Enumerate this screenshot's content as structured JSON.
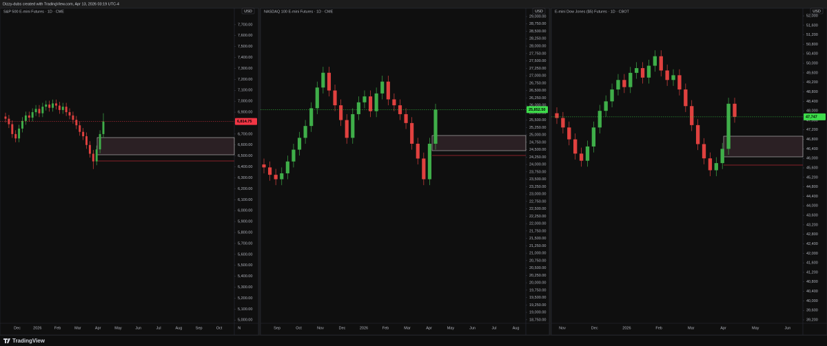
{
  "header": "Dizzy-dubs created with TradingView.com, Apr 13, 2026 03:19 UTC-4",
  "footer_brand": "TradingView",
  "chart_data": [
    {
      "type": "candlestick",
      "title": "S&P 500 E-mini Futures · 1D · CME",
      "currency": "USD",
      "up_color": "#3fae49",
      "down_color": "#e0413f",
      "last_color": "#f23645",
      "x_labels": [
        "Dec",
        "2026",
        "Feb",
        "Mar",
        "Apr",
        "May",
        "Jun",
        "Jul",
        "Aug",
        "Sep",
        "Oct",
        "N"
      ],
      "open": [
        6860,
        6840,
        6790,
        6700,
        6660,
        6750,
        6820,
        6870,
        6850,
        6900,
        6930,
        6890,
        6950,
        6970,
        6940,
        6980,
        6960,
        6920,
        6950,
        6900,
        6870,
        6830,
        6780,
        6720,
        6680,
        6600,
        6520,
        6450,
        6560,
        6700
      ],
      "high": [
        6895,
        6875,
        6825,
        6735,
        6785,
        6855,
        6905,
        6905,
        6935,
        6965,
        6965,
        6985,
        7005,
        7005,
        7015,
        7015,
        6995,
        6985,
        6985,
        6935,
        6905,
        6865,
        6815,
        6755,
        6715,
        6635,
        6555,
        6595,
        6735,
        6890
      ],
      "low": [
        6805,
        6755,
        6665,
        6625,
        6625,
        6715,
        6785,
        6815,
        6815,
        6865,
        6855,
        6855,
        6915,
        6905,
        6905,
        6925,
        6885,
        6885,
        6865,
        6835,
        6795,
        6745,
        6685,
        6645,
        6565,
        6485,
        6380,
        6415,
        6525,
        6665
      ],
      "close": [
        6840,
        6790,
        6700,
        6660,
        6750,
        6820,
        6870,
        6850,
        6900,
        6930,
        6890,
        6950,
        6970,
        6940,
        6980,
        6960,
        6920,
        6950,
        6900,
        6870,
        6830,
        6780,
        6720,
        6680,
        6600,
        6520,
        6450,
        6560,
        6700,
        6815
      ],
      "last_price": {
        "value": 6814.75,
        "label": "6,814.75"
      },
      "ylim": [
        4970,
        7850
      ],
      "yticks": [
        {
          "value": 5000,
          "label": "5,000.00"
        },
        {
          "value": 5100,
          "label": "5,100.00"
        },
        {
          "value": 5200,
          "label": "5,200.00"
        },
        {
          "value": 5300,
          "label": "5,300.00"
        },
        {
          "value": 5400,
          "label": "5,400.00"
        },
        {
          "value": 5500,
          "label": "5,500.00"
        },
        {
          "value": 5600,
          "label": "5,600.00"
        },
        {
          "value": 5700,
          "label": "5,700.00"
        },
        {
          "value": 5800,
          "label": "5,800.00"
        },
        {
          "value": 5900,
          "label": "5,900.00"
        },
        {
          "value": 6000,
          "label": "6,000.00"
        },
        {
          "value": 6100,
          "label": "6,100.00"
        },
        {
          "value": 6200,
          "label": "6,200.00"
        },
        {
          "value": 6300,
          "label": "6,300.00"
        },
        {
          "value": 6400,
          "label": "6,400.00"
        },
        {
          "value": 6500,
          "label": "6,500.00"
        },
        {
          "value": 6600,
          "label": "6,600.00"
        },
        {
          "value": 6700,
          "label": "6,700.00"
        },
        {
          "value": 6800,
          "label": "6,800.00"
        },
        {
          "value": 6900,
          "label": "6,900.00"
        },
        {
          "value": 7000,
          "label": "7,000.00"
        },
        {
          "value": 7100,
          "label": "7,100.00"
        },
        {
          "value": 7200,
          "label": "7,200.00"
        },
        {
          "value": 7300,
          "label": "7,300.00"
        },
        {
          "value": 7400,
          "label": "7,400.00"
        },
        {
          "value": 7500,
          "label": "7,500.00"
        },
        {
          "value": 7600,
          "label": "7,600.00"
        },
        {
          "value": 7700,
          "label": "7,700.00"
        }
      ]
    },
    {
      "type": "candlestick",
      "title": "NASDAQ 100 E-mini Futures · 1D · CME",
      "currency": "USD",
      "up_color": "#3fae49",
      "down_color": "#e0413f",
      "last_color": "#3ddc4a",
      "x_labels": [
        "Sep",
        "Oct",
        "Nov",
        "Dec",
        "2026",
        "Feb",
        "Mar",
        "Apr",
        "May",
        "Jun",
        "Jul",
        "Aug"
      ],
      "open": [
        24000,
        23900,
        23650,
        23500,
        23700,
        24100,
        24500,
        24900,
        25300,
        25900,
        26600,
        27100,
        26500,
        26000,
        25500,
        24900,
        25700,
        26100,
        26300,
        25800,
        26400,
        26800,
        26200,
        26000,
        25700,
        25400,
        24700,
        24200,
        23500,
        24700
      ],
      "high": [
        24200,
        24100,
        23850,
        23900,
        24300,
        24700,
        25100,
        25500,
        26100,
        26800,
        27300,
        27300,
        26700,
        26200,
        25700,
        25900,
        26300,
        26500,
        26500,
        26600,
        27000,
        27000,
        26400,
        26200,
        25900,
        25600,
        24900,
        24400,
        24900,
        26050
      ],
      "low": [
        23700,
        23450,
        23300,
        23300,
        23500,
        23900,
        24300,
        24700,
        25100,
        25700,
        26400,
        26300,
        25800,
        25300,
        24700,
        24700,
        25500,
        25900,
        25600,
        25600,
        26200,
        26000,
        25800,
        25500,
        25200,
        24500,
        24000,
        23300,
        23300,
        24500
      ],
      "close": [
        23900,
        23650,
        23500,
        23700,
        24100,
        24500,
        24900,
        25300,
        25900,
        26600,
        27100,
        26500,
        26000,
        25500,
        24900,
        25700,
        26100,
        26300,
        25800,
        26400,
        26800,
        26200,
        26000,
        25700,
        25400,
        24700,
        24200,
        23500,
        24700,
        25850
      ],
      "last_price": {
        "value": 25852.5,
        "label": "25,852.50"
      },
      "ylim": [
        18630,
        29280
      ],
      "yticks": [
        {
          "value": 18750,
          "label": "18,750.00"
        },
        {
          "value": 19000,
          "label": "19,000.00"
        },
        {
          "value": 19250,
          "label": "19,250.00"
        },
        {
          "value": 19500,
          "label": "19,500.00"
        },
        {
          "value": 19750,
          "label": "19,750.00"
        },
        {
          "value": 20000,
          "label": "20,000.00"
        },
        {
          "value": 20250,
          "label": "20,250.00"
        },
        {
          "value": 20500,
          "label": "20,500.00"
        },
        {
          "value": 20750,
          "label": "20,750.00"
        },
        {
          "value": 21000,
          "label": "21,000.00"
        },
        {
          "value": 21250,
          "label": "21,250.00"
        },
        {
          "value": 21500,
          "label": "21,500.00"
        },
        {
          "value": 21750,
          "label": "21,750.00"
        },
        {
          "value": 22000,
          "label": "22,000.00"
        },
        {
          "value": 22250,
          "label": "22,250.00"
        },
        {
          "value": 22500,
          "label": "22,500.00"
        },
        {
          "value": 22750,
          "label": "22,750.00"
        },
        {
          "value": 23000,
          "label": "23,000.00"
        },
        {
          "value": 23250,
          "label": "23,250.00"
        },
        {
          "value": 23500,
          "label": "23,500.00"
        },
        {
          "value": 23750,
          "label": "23,750.00"
        },
        {
          "value": 24000,
          "label": "24,000.00"
        },
        {
          "value": 24250,
          "label": "24,250.00"
        },
        {
          "value": 24500,
          "label": "24,500.00"
        },
        {
          "value": 24750,
          "label": "24,750.00"
        },
        {
          "value": 25000,
          "label": "25,000.00"
        },
        {
          "value": 25250,
          "label": "25,250.00"
        },
        {
          "value": 25500,
          "label": "25,500.00"
        },
        {
          "value": 25750,
          "label": "25,750.00"
        },
        {
          "value": 26000,
          "label": "26,000.00"
        },
        {
          "value": 26250,
          "label": "26,250.00"
        },
        {
          "value": 26500,
          "label": "26,500.00"
        },
        {
          "value": 26750,
          "label": "26,750.00"
        },
        {
          "value": 27000,
          "label": "27,000.00"
        },
        {
          "value": 27250,
          "label": "27,250.00"
        },
        {
          "value": 27500,
          "label": "27,500.00"
        },
        {
          "value": 27750,
          "label": "27,750.00"
        },
        {
          "value": 28000,
          "label": "28,000.00"
        },
        {
          "value": 28250,
          "label": "28,250.00"
        },
        {
          "value": 28500,
          "label": "28,500.00"
        },
        {
          "value": 28750,
          "label": "28,750.00"
        },
        {
          "value": 29000,
          "label": "29,000.00"
        }
      ]
    },
    {
      "type": "candlestick",
      "title": "E-mini Dow Jones ($5) Futures · 1D · CBOT",
      "currency": "USD",
      "up_color": "#3fae49",
      "down_color": "#e0413f",
      "last_color": "#3ddc4a",
      "x_labels": [
        "Nov",
        "Dec",
        "2026",
        "Feb",
        "Mar",
        "Apr",
        "May",
        "Jun"
      ],
      "open": [
        47900,
        47700,
        47300,
        46800,
        46200,
        45900,
        46500,
        47300,
        48000,
        48400,
        48900,
        49300,
        49000,
        49600,
        49800,
        49400,
        49900,
        50300,
        49700,
        49300,
        49500,
        48900,
        48200,
        47400,
        46600,
        46000,
        45500,
        45800,
        46400,
        48300
      ],
      "high": [
        48150,
        47950,
        47550,
        47050,
        46450,
        46750,
        47550,
        48250,
        48650,
        49150,
        49550,
        49550,
        49850,
        50050,
        50050,
        50150,
        50550,
        50550,
        49950,
        49750,
        49750,
        49150,
        48450,
        47650,
        46850,
        46250,
        46050,
        46650,
        48550,
        48550
      ],
      "low": [
        47450,
        47050,
        46550,
        45950,
        45650,
        45650,
        46250,
        47050,
        47750,
        48150,
        48650,
        48750,
        48750,
        49350,
        49150,
        49150,
        49650,
        49450,
        49050,
        49050,
        48650,
        47950,
        47150,
        46350,
        45750,
        45250,
        45250,
        45550,
        46150,
        47500
      ],
      "close": [
        47700,
        47300,
        46800,
        46200,
        45900,
        46500,
        47300,
        48000,
        48400,
        48900,
        49300,
        49000,
        49600,
        49800,
        49400,
        49900,
        50300,
        49700,
        49300,
        49500,
        48900,
        48200,
        47400,
        46600,
        46000,
        45500,
        45800,
        46400,
        48300,
        47750
      ],
      "last_price": {
        "value": 47747,
        "label": "47,747"
      },
      "ylim": [
        39055,
        52320
      ],
      "yticks": [
        {
          "value": 39200,
          "label": "39,200"
        },
        {
          "value": 39600,
          "label": "39,600"
        },
        {
          "value": 40000,
          "label": "40,000"
        },
        {
          "value": 40400,
          "label": "40,400"
        },
        {
          "value": 40800,
          "label": "40,800"
        },
        {
          "value": 41200,
          "label": "41,200"
        },
        {
          "value": 41600,
          "label": "41,600"
        },
        {
          "value": 42000,
          "label": "42,000"
        },
        {
          "value": 42400,
          "label": "42,400"
        },
        {
          "value": 42800,
          "label": "42,800"
        },
        {
          "value": 43200,
          "label": "43,200"
        },
        {
          "value": 43600,
          "label": "43,600"
        },
        {
          "value": 44000,
          "label": "44,000"
        },
        {
          "value": 44400,
          "label": "44,400"
        },
        {
          "value": 44800,
          "label": "44,800"
        },
        {
          "value": 45200,
          "label": "45,200"
        },
        {
          "value": 45600,
          "label": "45,600"
        },
        {
          "value": 46000,
          "label": "46,000"
        },
        {
          "value": 46400,
          "label": "46,400"
        },
        {
          "value": 46800,
          "label": "46,800"
        },
        {
          "value": 47200,
          "label": "47,200"
        },
        {
          "value": 47600,
          "label": "47,600"
        },
        {
          "value": 48000,
          "label": "48,000"
        },
        {
          "value": 48400,
          "label": "48,400"
        },
        {
          "value": 48800,
          "label": "48,800"
        },
        {
          "value": 49200,
          "label": "49,200"
        },
        {
          "value": 49600,
          "label": "49,600"
        },
        {
          "value": 50000,
          "label": "50,000"
        },
        {
          "value": 50400,
          "label": "50,400"
        },
        {
          "value": 50800,
          "label": "50,800"
        },
        {
          "value": 51200,
          "label": "51,200"
        },
        {
          "value": 51600,
          "label": "51,600"
        },
        {
          "value": 52000,
          "label": "52,000"
        }
      ]
    }
  ]
}
